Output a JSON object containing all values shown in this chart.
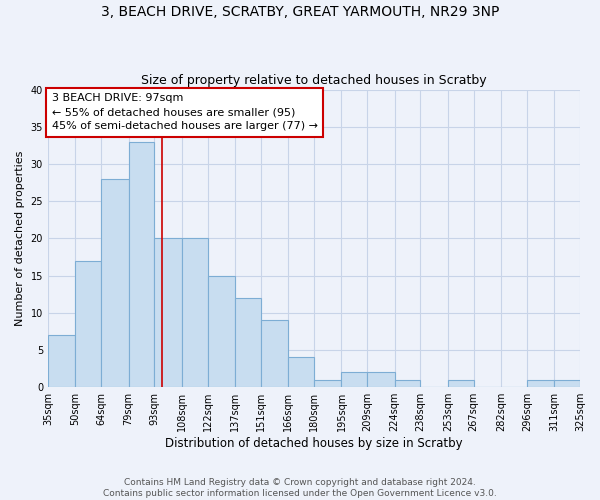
{
  "title": "3, BEACH DRIVE, SCRATBY, GREAT YARMOUTH, NR29 3NP",
  "subtitle": "Size of property relative to detached houses in Scratby",
  "xlabel": "Distribution of detached houses by size in Scratby",
  "ylabel": "Number of detached properties",
  "bar_color": "#c8ddf0",
  "bar_edge_color": "#7dadd4",
  "bins": [
    35,
    50,
    64,
    79,
    93,
    108,
    122,
    137,
    151,
    166,
    180,
    195,
    209,
    224,
    238,
    253,
    267,
    282,
    296,
    311,
    325
  ],
  "counts": [
    7,
    17,
    28,
    33,
    20,
    20,
    15,
    12,
    9,
    4,
    1,
    2,
    2,
    1,
    0,
    1,
    0,
    0,
    1,
    1
  ],
  "tick_labels": [
    "35sqm",
    "50sqm",
    "64sqm",
    "79sqm",
    "93sqm",
    "108sqm",
    "122sqm",
    "137sqm",
    "151sqm",
    "166sqm",
    "180sqm",
    "195sqm",
    "209sqm",
    "224sqm",
    "238sqm",
    "253sqm",
    "267sqm",
    "282sqm",
    "296sqm",
    "311sqm",
    "325sqm"
  ],
  "vline_x": 97,
  "vline_color": "#cc0000",
  "annotation_text": "3 BEACH DRIVE: 97sqm\n← 55% of detached houses are smaller (95)\n45% of semi-detached houses are larger (77) →",
  "annotation_box_color": "white",
  "annotation_box_edge": "#cc0000",
  "ylim": [
    0,
    40
  ],
  "yticks": [
    0,
    5,
    10,
    15,
    20,
    25,
    30,
    35,
    40
  ],
  "background_color": "#eef2fa",
  "grid_color": "#c8d4e8",
  "footer_text": "Contains HM Land Registry data © Crown copyright and database right 2024.\nContains public sector information licensed under the Open Government Licence v3.0.",
  "title_fontsize": 10,
  "subtitle_fontsize": 9,
  "xlabel_fontsize": 8.5,
  "ylabel_fontsize": 8,
  "tick_fontsize": 7,
  "annotation_fontsize": 8,
  "footer_fontsize": 6.5
}
